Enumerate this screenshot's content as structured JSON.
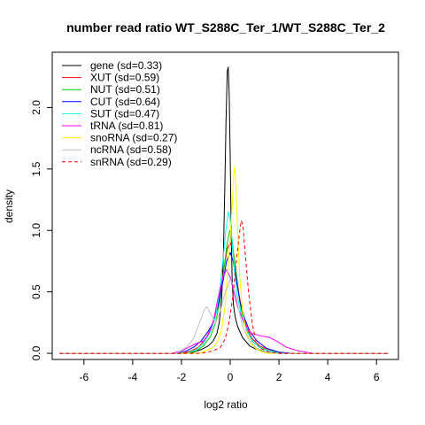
{
  "chart_data": {
    "type": "line",
    "title": "number read ratio WT_S288C_Ter_1/WT_S288C_Ter_2",
    "xlabel": "log2 ratio",
    "ylabel": "density",
    "xlim": [
      -7.3,
      6.9
    ],
    "ylim": [
      -0.05,
      2.45
    ],
    "xticks": [
      -6,
      -4,
      -2,
      0,
      2,
      4,
      6
    ],
    "xtick_labels": [
      "-6",
      "-4",
      "-2",
      "0",
      "2",
      "4",
      "6"
    ],
    "yticks": [
      0.0,
      0.5,
      1.0,
      1.5,
      2.0
    ],
    "ytick_labels": [
      "0.0",
      "0.5",
      "1.0",
      "1.5",
      "2.0"
    ],
    "grid": false,
    "legend_position": "top-left",
    "series": [
      {
        "name": "gene (sd=0.33)",
        "color": "#000000",
        "dash": false,
        "points": [
          [
            -7.0,
            0.0
          ],
          [
            -2.0,
            0.0
          ],
          [
            -1.5,
            0.01
          ],
          [
            -1.2,
            0.03
          ],
          [
            -0.9,
            0.06
          ],
          [
            -0.7,
            0.1
          ],
          [
            -0.55,
            0.16
          ],
          [
            -0.45,
            0.25
          ],
          [
            -0.35,
            0.45
          ],
          [
            -0.28,
            0.8
          ],
          [
            -0.22,
            1.35
          ],
          [
            -0.17,
            1.9
          ],
          [
            -0.12,
            2.3
          ],
          [
            -0.08,
            2.33
          ],
          [
            -0.04,
            2.1
          ],
          [
            0.0,
            1.6
          ],
          [
            0.04,
            1.0
          ],
          [
            0.08,
            0.6
          ],
          [
            0.13,
            0.4
          ],
          [
            0.2,
            0.3
          ],
          [
            0.3,
            0.22
          ],
          [
            0.5,
            0.13
          ],
          [
            0.8,
            0.06
          ],
          [
            1.1,
            0.03
          ],
          [
            1.5,
            0.01
          ],
          [
            2.0,
            0.0
          ],
          [
            6.5,
            0.0
          ]
        ]
      },
      {
        "name": "XUT (sd=0.59)",
        "color": "#ff0000",
        "dash": false,
        "points": [
          [
            -7.0,
            0.0
          ],
          [
            -2.0,
            0.0
          ],
          [
            -1.6,
            0.02
          ],
          [
            -1.3,
            0.05
          ],
          [
            -1.0,
            0.12
          ],
          [
            -0.8,
            0.2
          ],
          [
            -0.6,
            0.32
          ],
          [
            -0.4,
            0.5
          ],
          [
            -0.25,
            0.7
          ],
          [
            -0.12,
            0.85
          ],
          [
            0.0,
            0.9
          ],
          [
            0.1,
            0.85
          ],
          [
            0.2,
            0.72
          ],
          [
            0.35,
            0.5
          ],
          [
            0.5,
            0.32
          ],
          [
            0.7,
            0.2
          ],
          [
            0.9,
            0.12
          ],
          [
            1.2,
            0.06
          ],
          [
            1.6,
            0.03
          ],
          [
            2.0,
            0.01
          ],
          [
            2.5,
            0.0
          ],
          [
            6.5,
            0.0
          ]
        ]
      },
      {
        "name": "NUT (sd=0.51)",
        "color": "#00cc00",
        "dash": false,
        "points": [
          [
            -7.0,
            0.0
          ],
          [
            -1.8,
            0.0
          ],
          [
            -1.4,
            0.02
          ],
          [
            -1.1,
            0.06
          ],
          [
            -0.8,
            0.14
          ],
          [
            -0.6,
            0.25
          ],
          [
            -0.4,
            0.45
          ],
          [
            -0.25,
            0.7
          ],
          [
            -0.12,
            0.9
          ],
          [
            -0.02,
            1.0
          ],
          [
            0.06,
            0.95
          ],
          [
            0.15,
            0.8
          ],
          [
            0.3,
            0.55
          ],
          [
            0.45,
            0.35
          ],
          [
            0.65,
            0.2
          ],
          [
            0.9,
            0.1
          ],
          [
            1.2,
            0.05
          ],
          [
            1.6,
            0.02
          ],
          [
            2.2,
            0.0
          ],
          [
            6.5,
            0.0
          ]
        ]
      },
      {
        "name": "CUT (sd=0.64)",
        "color": "#0000ff",
        "dash": false,
        "points": [
          [
            -7.0,
            0.0
          ],
          [
            -2.2,
            0.0
          ],
          [
            -1.8,
            0.02
          ],
          [
            -1.5,
            0.05
          ],
          [
            -1.2,
            0.1
          ],
          [
            -0.9,
            0.18
          ],
          [
            -0.7,
            0.25
          ],
          [
            -0.5,
            0.38
          ],
          [
            -0.3,
            0.58
          ],
          [
            -0.15,
            0.75
          ],
          [
            0.0,
            0.82
          ],
          [
            0.12,
            0.75
          ],
          [
            0.25,
            0.6
          ],
          [
            0.4,
            0.42
          ],
          [
            0.6,
            0.28
          ],
          [
            0.8,
            0.18
          ],
          [
            1.1,
            0.1
          ],
          [
            1.5,
            0.04
          ],
          [
            2.0,
            0.01
          ],
          [
            2.6,
            0.0
          ],
          [
            6.5,
            0.0
          ]
        ]
      },
      {
        "name": "SUT (sd=0.47)",
        "color": "#00ffff",
        "dash": false,
        "points": [
          [
            -7.0,
            0.0
          ],
          [
            -1.8,
            0.0
          ],
          [
            -1.4,
            0.03
          ],
          [
            -1.1,
            0.08
          ],
          [
            -0.8,
            0.18
          ],
          [
            -0.6,
            0.3
          ],
          [
            -0.45,
            0.48
          ],
          [
            -0.3,
            0.75
          ],
          [
            -0.18,
            1.0
          ],
          [
            -0.08,
            1.15
          ],
          [
            0.0,
            1.08
          ],
          [
            0.08,
            0.9
          ],
          [
            0.18,
            0.65
          ],
          [
            0.3,
            0.45
          ],
          [
            0.5,
            0.28
          ],
          [
            0.7,
            0.17
          ],
          [
            1.0,
            0.08
          ],
          [
            1.4,
            0.03
          ],
          [
            2.0,
            0.0
          ],
          [
            6.5,
            0.0
          ]
        ]
      },
      {
        "name": "tRNA (sd=0.81)",
        "color": "#ff00ff",
        "dash": false,
        "points": [
          [
            -7.0,
            0.0
          ],
          [
            -2.4,
            0.0
          ],
          [
            -2.0,
            0.02
          ],
          [
            -1.7,
            0.05
          ],
          [
            -1.4,
            0.08
          ],
          [
            -1.1,
            0.1
          ],
          [
            -0.9,
            0.15
          ],
          [
            -0.7,
            0.25
          ],
          [
            -0.5,
            0.45
          ],
          [
            -0.3,
            0.62
          ],
          [
            -0.15,
            0.68
          ],
          [
            0.0,
            0.62
          ],
          [
            0.15,
            0.5
          ],
          [
            0.3,
            0.38
          ],
          [
            0.5,
            0.28
          ],
          [
            0.7,
            0.2
          ],
          [
            0.9,
            0.16
          ],
          [
            1.1,
            0.15
          ],
          [
            1.3,
            0.14
          ],
          [
            1.6,
            0.13
          ],
          [
            1.9,
            0.1
          ],
          [
            2.3,
            0.05
          ],
          [
            2.8,
            0.02
          ],
          [
            3.4,
            0.0
          ],
          [
            6.5,
            0.0
          ]
        ]
      },
      {
        "name": "snoRNA (sd=0.27)",
        "color": "#ffff00",
        "dash": false,
        "points": [
          [
            -7.0,
            0.0
          ],
          [
            -1.3,
            0.0
          ],
          [
            -1.0,
            0.02
          ],
          [
            -0.7,
            0.05
          ],
          [
            -0.5,
            0.1
          ],
          [
            -0.35,
            0.2
          ],
          [
            -0.2,
            0.4
          ],
          [
            -0.1,
            0.7
          ],
          [
            0.0,
            0.95
          ],
          [
            0.08,
            1.2
          ],
          [
            0.14,
            1.45
          ],
          [
            0.18,
            1.52
          ],
          [
            0.22,
            1.4
          ],
          [
            0.3,
            1.0
          ],
          [
            0.4,
            0.6
          ],
          [
            0.5,
            0.35
          ],
          [
            0.65,
            0.18
          ],
          [
            0.85,
            0.08
          ],
          [
            1.1,
            0.03
          ],
          [
            1.5,
            0.0
          ],
          [
            6.5,
            0.0
          ]
        ]
      },
      {
        "name": "ncRNA (sd=0.58)",
        "color": "#c0c0c0",
        "dash": false,
        "points": [
          [
            -7.0,
            0.0
          ],
          [
            -2.2,
            0.0
          ],
          [
            -1.8,
            0.05
          ],
          [
            -1.5,
            0.12
          ],
          [
            -1.2,
            0.28
          ],
          [
            -1.05,
            0.36
          ],
          [
            -0.95,
            0.38
          ],
          [
            -0.8,
            0.32
          ],
          [
            -0.6,
            0.25
          ],
          [
            -0.4,
            0.35
          ],
          [
            -0.2,
            0.5
          ],
          [
            0.0,
            0.6
          ],
          [
            0.15,
            0.55
          ],
          [
            0.3,
            0.4
          ],
          [
            0.5,
            0.22
          ],
          [
            0.8,
            0.1
          ],
          [
            1.1,
            0.04
          ],
          [
            1.5,
            0.01
          ],
          [
            2.0,
            0.0
          ],
          [
            6.5,
            0.0
          ]
        ]
      },
      {
        "name": "snRNA (sd=0.29)",
        "color": "#ff0000",
        "dash": true,
        "points": [
          [
            -7.0,
            0.0
          ],
          [
            -1.2,
            0.0
          ],
          [
            -0.7,
            0.02
          ],
          [
            -0.4,
            0.05
          ],
          [
            -0.2,
            0.12
          ],
          [
            -0.05,
            0.25
          ],
          [
            0.1,
            0.45
          ],
          [
            0.25,
            0.75
          ],
          [
            0.38,
            0.98
          ],
          [
            0.45,
            1.08
          ],
          [
            0.52,
            1.05
          ],
          [
            0.62,
            0.8
          ],
          [
            0.75,
            0.5
          ],
          [
            0.9,
            0.25
          ],
          [
            1.05,
            0.1
          ],
          [
            1.25,
            0.04
          ],
          [
            1.6,
            0.01
          ],
          [
            2.0,
            0.0
          ],
          [
            6.5,
            0.0
          ]
        ]
      }
    ]
  }
}
